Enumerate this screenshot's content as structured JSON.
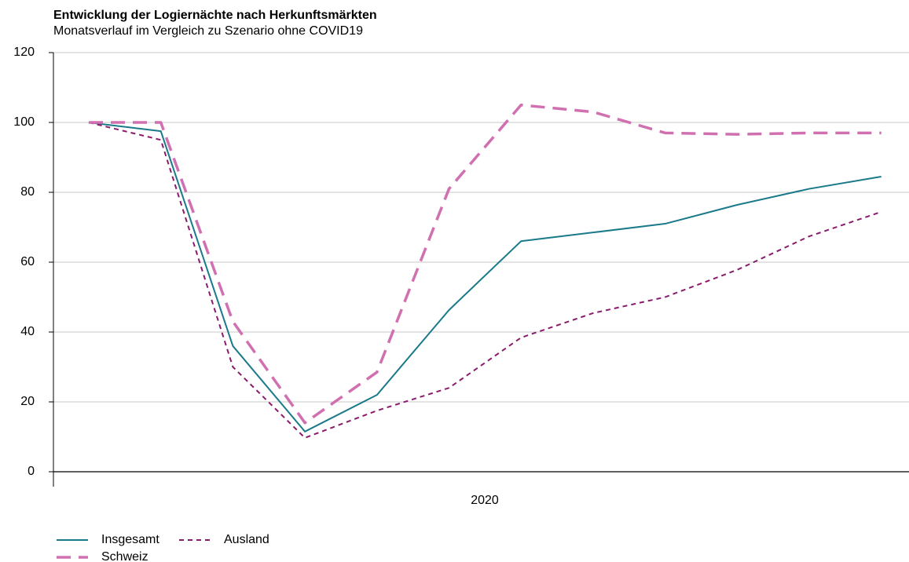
{
  "chart_data": {
    "type": "line",
    "title": "Entwicklung der Logiernächte nach Herkunftsmärkten",
    "subtitle": "Monatsverlauf im Vergleich zu Szenario ohne COVID19",
    "x_group_label": "2020",
    "categories": [
      null,
      null,
      null,
      null,
      null,
      null,
      null,
      null,
      null,
      null,
      null,
      null
    ],
    "series": [
      {
        "name": "Insgesamt",
        "color": "#1a7a8a",
        "dash": "solid",
        "values": [
          100,
          97.5,
          36,
          11.5,
          22,
          46.3,
          66,
          68.5,
          71,
          76.4,
          81,
          84.5
        ]
      },
      {
        "name": "Ausland",
        "color": "#8b1a6b",
        "dash": "short",
        "values": [
          100,
          95,
          30,
          9.7,
          17.5,
          24,
          38.4,
          45.4,
          50,
          57.8,
          67.4,
          74.4
        ]
      },
      {
        "name": "Schweiz",
        "color": "#d070b0",
        "dash": "long",
        "values": [
          100,
          100,
          43,
          14,
          28.5,
          81,
          105,
          103,
          97,
          96.6,
          97,
          97
        ]
      }
    ],
    "ylim": [
      0,
      120
    ],
    "yticks": [
      0,
      20,
      40,
      60,
      80,
      100,
      120
    ],
    "grid": true,
    "legend": "bottom-left"
  }
}
